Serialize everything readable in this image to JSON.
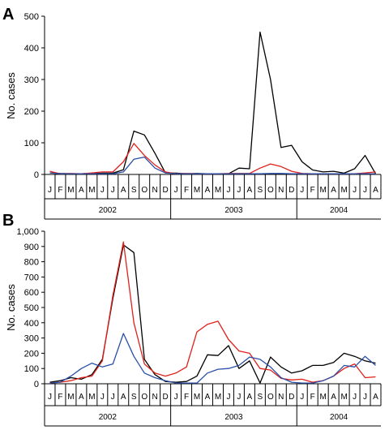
{
  "months": [
    "J",
    "F",
    "M",
    "A",
    "M",
    "J",
    "J",
    "A",
    "S",
    "O",
    "N",
    "D",
    "J",
    "F",
    "M",
    "A",
    "M",
    "J",
    "J",
    "A",
    "S",
    "O",
    "N",
    "D",
    "J",
    "F",
    "M",
    "A",
    "M",
    "J",
    "J",
    "A"
  ],
  "years": [
    "2002",
    "2003",
    "2004"
  ],
  "colors": {
    "black": "#000000",
    "red": "#e0201b",
    "blue": "#2a4fa8"
  },
  "chart_data": [
    {
      "type": "line",
      "panel": "A",
      "ylabel": "No. cases",
      "ylim": [
        0,
        500
      ],
      "yticks": [
        "0",
        "100",
        "200",
        "300",
        "400",
        "500"
      ],
      "grid": false,
      "x": [
        "J",
        "F",
        "M",
        "A",
        "M",
        "J",
        "J",
        "A",
        "S",
        "O",
        "N",
        "D",
        "J",
        "F",
        "M",
        "A",
        "M",
        "J",
        "J",
        "A",
        "S",
        "O",
        "N",
        "D",
        "J",
        "F",
        "M",
        "A",
        "M",
        "J",
        "J",
        "A"
      ],
      "series": [
        {
          "color": "black",
          "values": [
            5,
            3,
            2,
            2,
            3,
            4,
            4,
            15,
            137,
            125,
            67,
            5,
            4,
            2,
            3,
            2,
            2,
            2,
            20,
            18,
            450,
            300,
            85,
            92,
            40,
            14,
            8,
            10,
            4,
            18,
            60,
            2
          ]
        },
        {
          "color": "red",
          "values": [
            10,
            2,
            3,
            2,
            5,
            8,
            8,
            40,
            98,
            60,
            30,
            8,
            2,
            3,
            2,
            2,
            2,
            3,
            3,
            3,
            20,
            33,
            25,
            10,
            3,
            2,
            2,
            2,
            2,
            2,
            5,
            8
          ]
        },
        {
          "color": "blue",
          "values": [
            5,
            2,
            2,
            2,
            2,
            2,
            2,
            8,
            48,
            55,
            20,
            5,
            2,
            2,
            2,
            2,
            2,
            2,
            2,
            2,
            2,
            3,
            3,
            2,
            2,
            2,
            2,
            2,
            2,
            2,
            2,
            2
          ]
        }
      ]
    },
    {
      "type": "line",
      "panel": "B",
      "ylabel": "No. cases",
      "ylim": [
        0,
        1000
      ],
      "yticks": [
        "0",
        "100",
        "200",
        "300",
        "400",
        "500",
        "600",
        "700",
        "800",
        "900",
        "1,000"
      ],
      "grid": false,
      "x": [
        "J",
        "F",
        "M",
        "A",
        "M",
        "J",
        "J",
        "A",
        "S",
        "O",
        "N",
        "D",
        "J",
        "F",
        "M",
        "A",
        "M",
        "J",
        "J",
        "A",
        "S",
        "O",
        "N",
        "D",
        "J",
        "F",
        "M",
        "A",
        "M",
        "J",
        "J",
        "A"
      ],
      "series": [
        {
          "color": "black",
          "values": [
            10,
            20,
            40,
            30,
            60,
            160,
            560,
            910,
            860,
            160,
            60,
            15,
            10,
            15,
            50,
            190,
            185,
            250,
            100,
            150,
            5,
            175,
            110,
            70,
            85,
            120,
            120,
            140,
            200,
            180,
            150,
            135
          ]
        },
        {
          "color": "red",
          "values": [
            5,
            10,
            20,
            40,
            50,
            150,
            580,
            930,
            400,
            130,
            70,
            50,
            70,
            110,
            340,
            390,
            410,
            290,
            215,
            200,
            100,
            90,
            35,
            25,
            30,
            10,
            20,
            50,
            100,
            130,
            40,
            45
          ]
        },
        {
          "color": "blue",
          "values": [
            5,
            10,
            50,
            100,
            135,
            110,
            130,
            330,
            180,
            70,
            40,
            20,
            5,
            5,
            5,
            70,
            95,
            100,
            120,
            175,
            160,
            110,
            40,
            10,
            5,
            5,
            20,
            50,
            120,
            110,
            180,
            120
          ]
        }
      ]
    }
  ]
}
